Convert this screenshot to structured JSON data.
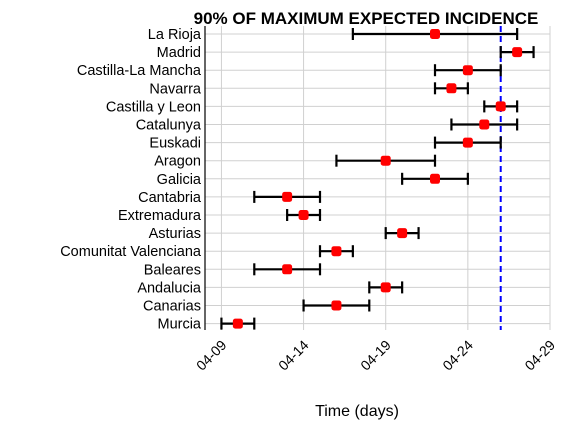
{
  "chart_data": {
    "type": "scatter",
    "title": "90%  OF MAXIMUM EXPECTED INCIDENCE",
    "xlabel": "Time (days)",
    "ylabel": "",
    "x_tick_labels": [
      "04-09",
      "04-14",
      "04-19",
      "04-24",
      "04-29"
    ],
    "x_ticks": [
      "2020-04-09",
      "2020-04-14",
      "2020-04-19",
      "2020-04-24",
      "2020-04-29"
    ],
    "xlim": [
      "2020-04-08",
      "2020-04-29"
    ],
    "grid": true,
    "reference_line": {
      "x": "2020-04-26",
      "color": "#0000ff",
      "style": "dashed"
    },
    "point_color": "#ff0000",
    "categories": [
      "La Rioja",
      "Madrid",
      "Castilla-La Mancha",
      "Navarra",
      "Castilla y Leon",
      "Catalunya",
      "Euskadi",
      "Aragon",
      "Galicia",
      "Cantabria",
      "Extremadura",
      "Asturias",
      "Comunitat Valenciana",
      "Baleares",
      "Andalucia",
      "Canarias",
      "Murcia"
    ],
    "points": [
      {
        "category": "La Rioja",
        "value": "2020-04-22",
        "low": "2020-04-17",
        "high": "2020-04-27"
      },
      {
        "category": "Madrid",
        "value": "2020-04-27",
        "low": "2020-04-26",
        "high": "2020-04-28"
      },
      {
        "category": "Castilla-La Mancha",
        "value": "2020-04-24",
        "low": "2020-04-22",
        "high": "2020-04-26"
      },
      {
        "category": "Navarra",
        "value": "2020-04-23",
        "low": "2020-04-22",
        "high": "2020-04-24"
      },
      {
        "category": "Castilla y Leon",
        "value": "2020-04-26",
        "low": "2020-04-25",
        "high": "2020-04-27"
      },
      {
        "category": "Catalunya",
        "value": "2020-04-25",
        "low": "2020-04-23",
        "high": "2020-04-27"
      },
      {
        "category": "Euskadi",
        "value": "2020-04-24",
        "low": "2020-04-22",
        "high": "2020-04-26"
      },
      {
        "category": "Aragon",
        "value": "2020-04-19",
        "low": "2020-04-16",
        "high": "2020-04-22"
      },
      {
        "category": "Galicia",
        "value": "2020-04-22",
        "low": "2020-04-20",
        "high": "2020-04-24"
      },
      {
        "category": "Cantabria",
        "value": "2020-04-13",
        "low": "2020-04-11",
        "high": "2020-04-15"
      },
      {
        "category": "Extremadura",
        "value": "2020-04-14",
        "low": "2020-04-13",
        "high": "2020-04-15"
      },
      {
        "category": "Asturias",
        "value": "2020-04-20",
        "low": "2020-04-19",
        "high": "2020-04-21"
      },
      {
        "category": "Comunitat Valenciana",
        "value": "2020-04-16",
        "low": "2020-04-15",
        "high": "2020-04-17"
      },
      {
        "category": "Baleares",
        "value": "2020-04-13",
        "low": "2020-04-11",
        "high": "2020-04-15"
      },
      {
        "category": "Andalucia",
        "value": "2020-04-19",
        "low": "2020-04-18",
        "high": "2020-04-20"
      },
      {
        "category": "Canarias",
        "value": "2020-04-16",
        "low": "2020-04-14",
        "high": "2020-04-18"
      },
      {
        "category": "Murcia",
        "value": "2020-04-10",
        "low": "2020-04-09",
        "high": "2020-04-11"
      }
    ]
  }
}
